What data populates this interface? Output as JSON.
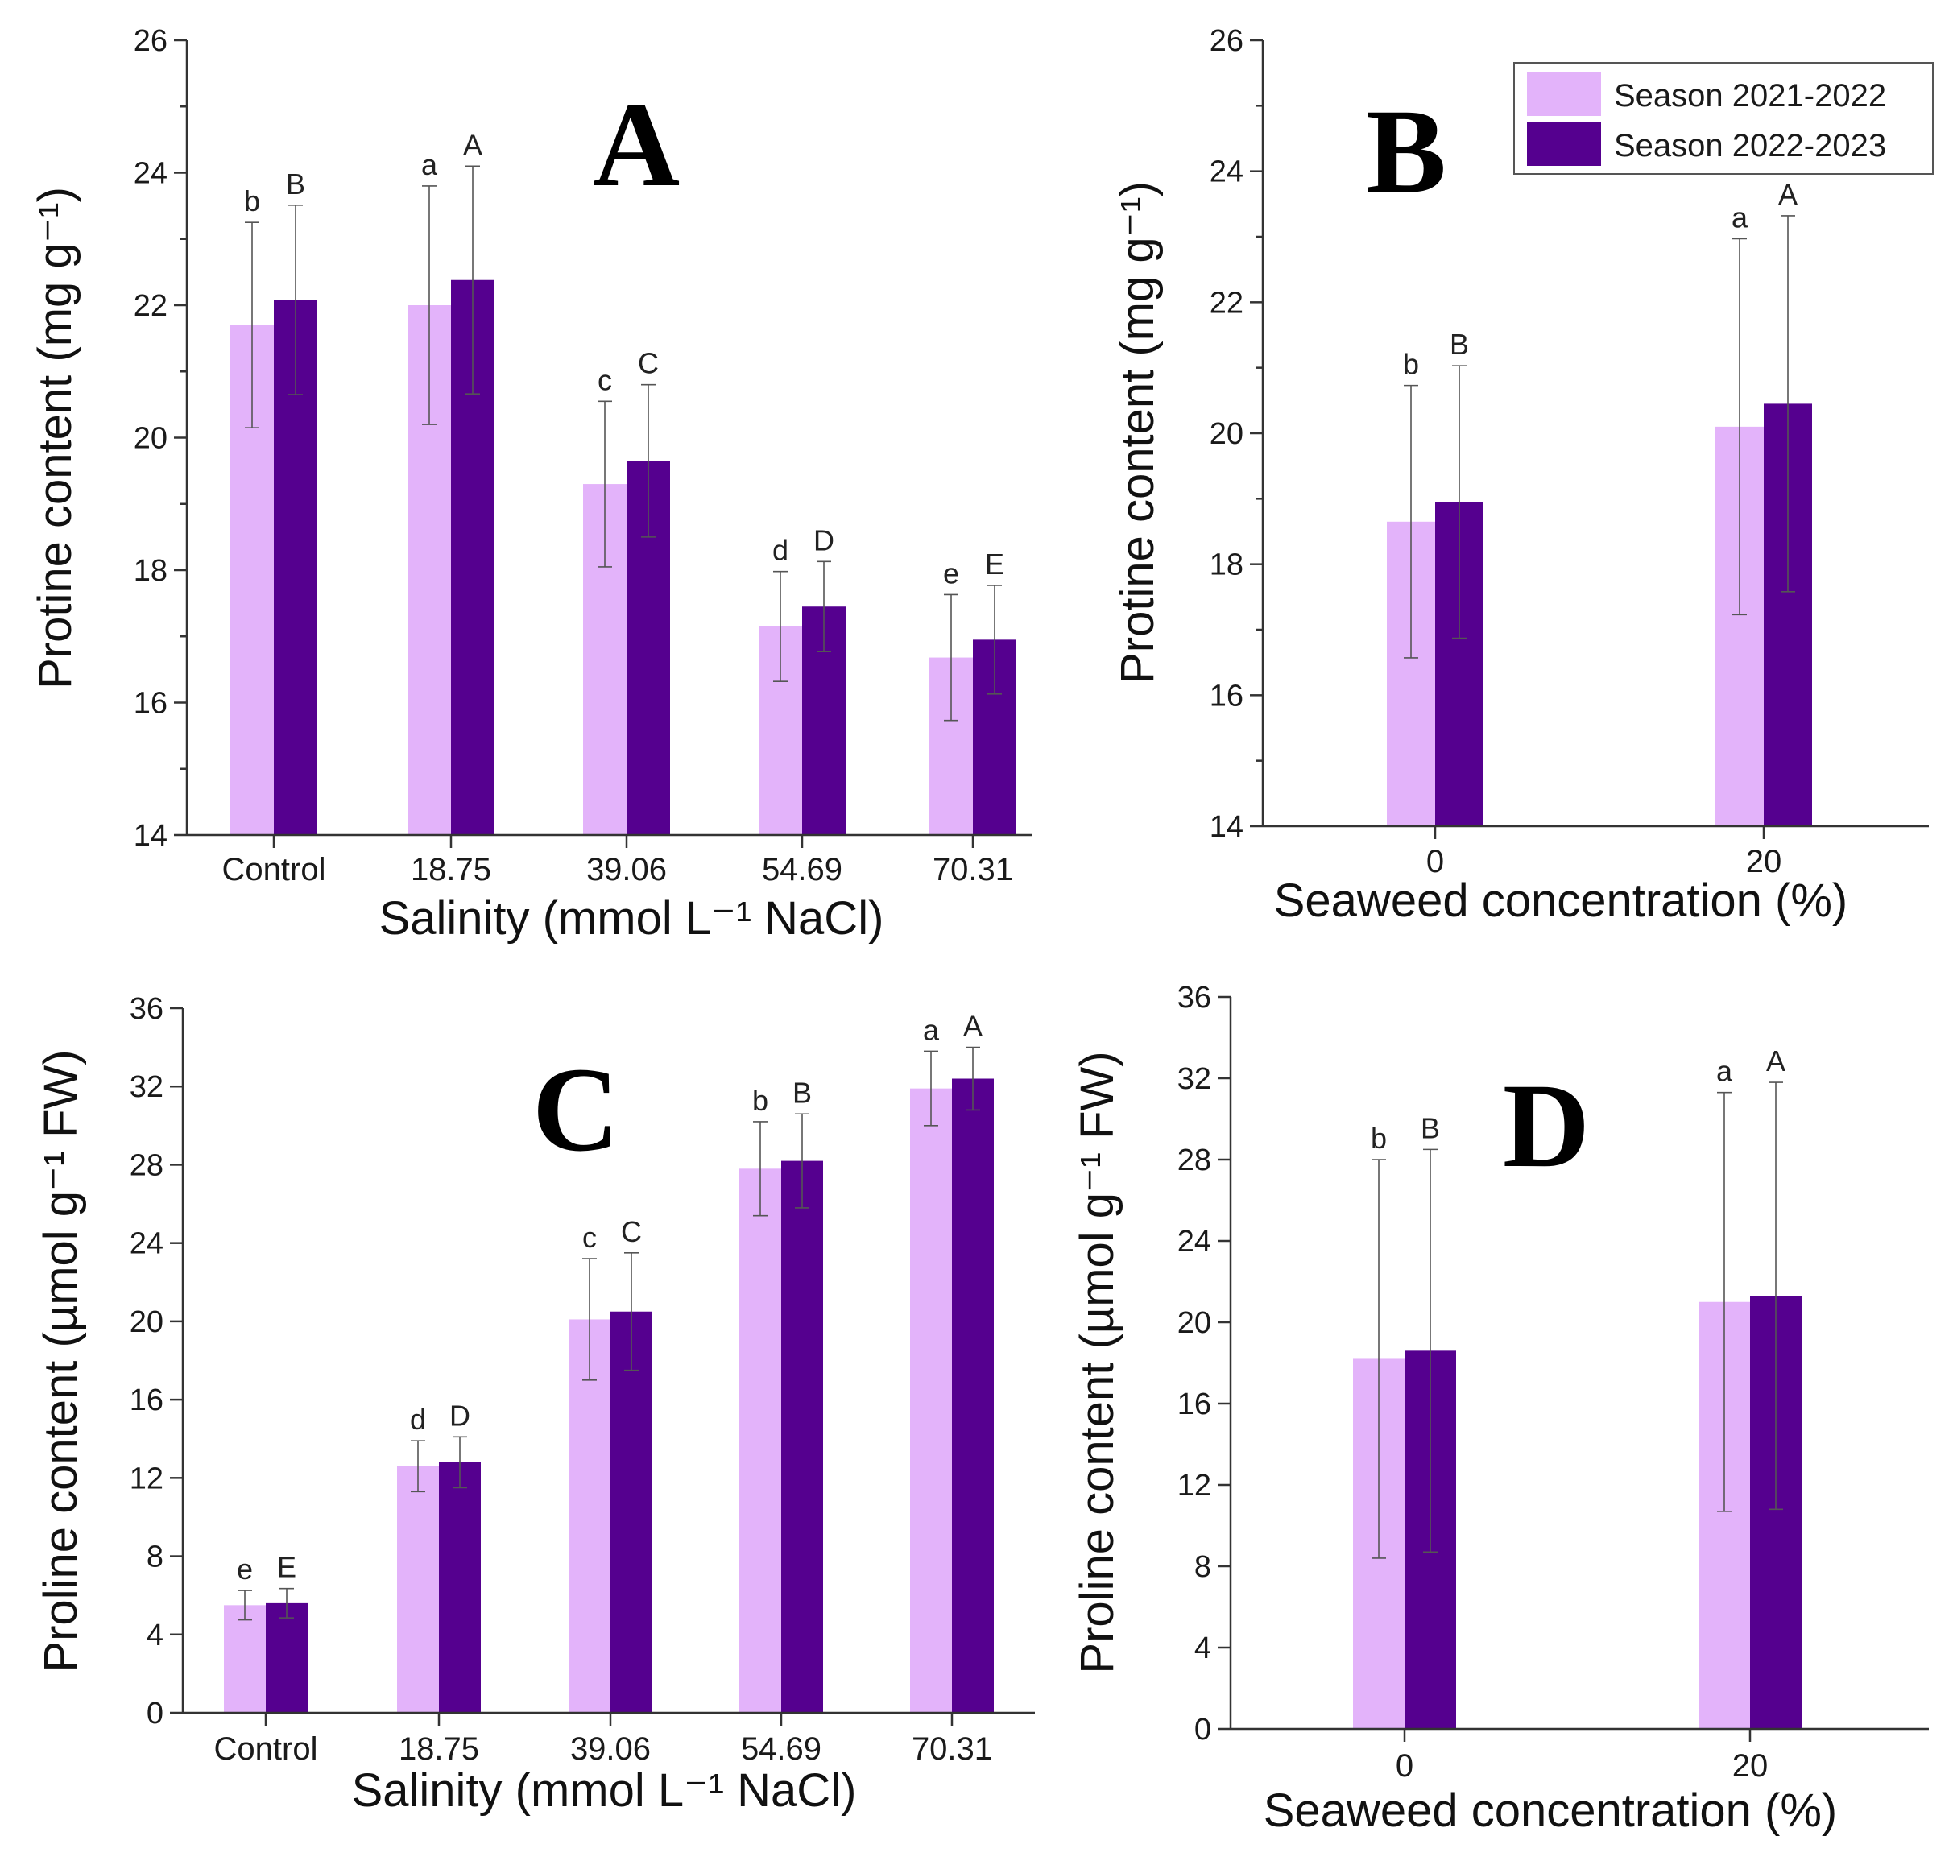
{
  "colors": {
    "season1": "#e3b3fa",
    "season2": "#55008f"
  },
  "legend": {
    "series1": "Season 2021-2022",
    "series2": "Season 2022-2023"
  },
  "chart_data": [
    {
      "panel": "A",
      "type": "bar",
      "title": "A",
      "xlabel": "Salinity (mmol L⁻¹ NaCl)",
      "ylabel": "Protine content (mg g⁻¹)",
      "categories": [
        "Control",
        "18.75",
        "39.06",
        "54.69",
        "70.31"
      ],
      "ylim": [
        14,
        26
      ],
      "yticks": [
        14,
        16,
        18,
        20,
        22,
        24,
        26
      ],
      "series": [
        {
          "name": "Season 2021-2022",
          "values": [
            21.7,
            22.0,
            19.3,
            17.15,
            16.68
          ],
          "errors": [
            1.55,
            1.8,
            1.25,
            0.83,
            0.95
          ],
          "letters": [
            "b",
            "a",
            "c",
            "d",
            "e"
          ]
        },
        {
          "name": "Season 2022-2023",
          "values": [
            22.08,
            22.38,
            19.65,
            17.45,
            16.95
          ],
          "errors": [
            1.43,
            1.72,
            1.15,
            0.68,
            0.82
          ],
          "letters": [
            "B",
            "A",
            "C",
            "D",
            "E"
          ]
        }
      ]
    },
    {
      "panel": "B",
      "type": "bar",
      "title": "B",
      "xlabel": "Seaweed concentration (%)",
      "ylabel": "Protine content (mg g⁻¹)",
      "categories": [
        "0",
        "20"
      ],
      "ylim": [
        14,
        26
      ],
      "yticks": [
        14,
        16,
        18,
        20,
        22,
        24,
        26
      ],
      "series": [
        {
          "name": "Season 2021-2022",
          "values": [
            18.65,
            20.1
          ],
          "errors": [
            2.08,
            2.87
          ],
          "letters": [
            "b",
            "a"
          ]
        },
        {
          "name": "Season 2022-2023",
          "values": [
            18.95,
            20.45
          ],
          "errors": [
            2.08,
            2.87
          ],
          "letters": [
            "B",
            "A"
          ]
        }
      ]
    },
    {
      "panel": "C",
      "type": "bar",
      "title": "C",
      "xlabel": "Salinity (mmol L⁻¹ NaCl)",
      "ylabel": "Proline content (µmol g⁻¹ FW)",
      "categories": [
        "Control",
        "18.75",
        "39.06",
        "54.69",
        "70.31"
      ],
      "ylim": [
        0,
        36
      ],
      "yticks": [
        0,
        4,
        8,
        12,
        16,
        20,
        24,
        28,
        32,
        36
      ],
      "series": [
        {
          "name": "Season 2021-2022",
          "values": [
            5.5,
            12.6,
            20.1,
            27.8,
            31.9
          ],
          "errors": [
            0.75,
            1.3,
            3.1,
            2.4,
            1.9
          ],
          "letters": [
            "e",
            "d",
            "c",
            "b",
            "a"
          ]
        },
        {
          "name": "Season 2022-2023",
          "values": [
            5.6,
            12.8,
            20.5,
            28.2,
            32.4
          ],
          "errors": [
            0.75,
            1.3,
            3.0,
            2.4,
            1.6
          ],
          "letters": [
            "E",
            "D",
            "C",
            "B",
            "A"
          ]
        }
      ]
    },
    {
      "panel": "D",
      "type": "bar",
      "title": "D",
      "xlabel": "Seaweed concentration (%)",
      "ylabel": "Proline content (µmol g⁻¹ FW)",
      "categories": [
        "0",
        "20"
      ],
      "ylim": [
        0,
        36
      ],
      "yticks": [
        0,
        4,
        8,
        12,
        16,
        20,
        24,
        28,
        32,
        36
      ],
      "series": [
        {
          "name": "Season 2021-2022",
          "values": [
            18.2,
            21.0
          ],
          "errors": [
            9.8,
            10.3
          ],
          "letters": [
            "b",
            "a"
          ]
        },
        {
          "name": "Season 2022-2023",
          "values": [
            18.6,
            21.3
          ],
          "errors": [
            9.9,
            10.5
          ],
          "letters": [
            "B",
            "A"
          ]
        }
      ]
    }
  ]
}
